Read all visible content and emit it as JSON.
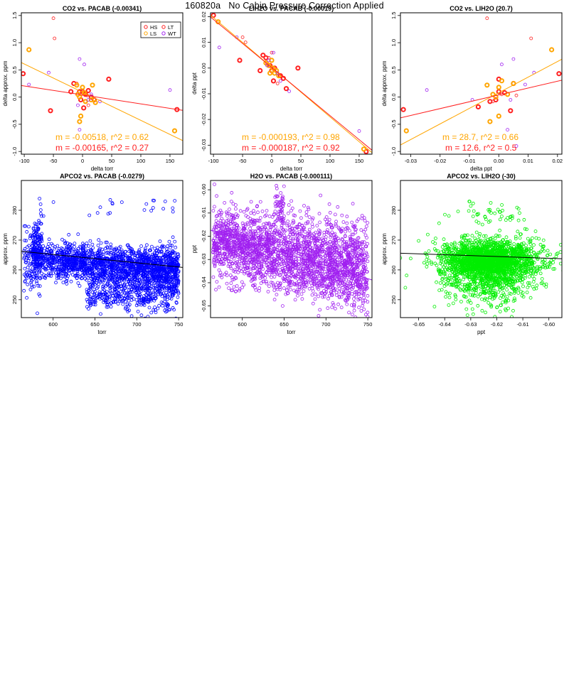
{
  "page": {
    "title": "160820a   No Cabin Pressure Correction Applied"
  },
  "chart_data": [
    {
      "type": "scatter",
      "title": "CO2 vs. PACAB (-0.00341)",
      "xlabel": "delta torr",
      "ylabel": "delta approx. ppm",
      "xlim": [
        -105,
        172
      ],
      "ylim": [
        -1.05,
        1.55
      ],
      "xticks": [
        -100,
        -50,
        0,
        50,
        100,
        150
      ],
      "yticks": [
        -1.0,
        -0.5,
        0.0,
        0.5,
        1.0,
        1.5
      ],
      "ytick_labels": [
        "-1.0",
        "-0.5",
        "0.0",
        "0.5",
        "1.0",
        "1.5"
      ],
      "legend": {
        "placement": "top-right",
        "entries": [
          {
            "label": "HS",
            "color": "#ff2020"
          },
          {
            "label": "LT",
            "color": "#ff2020"
          },
          {
            "label": "LS",
            "color": "#ffa500"
          },
          {
            "label": "WT",
            "color": "#a020f0"
          }
        ]
      },
      "fits": [
        {
          "color": "#ffa500",
          "slope": -0.00518,
          "intercept": 0.09
        },
        {
          "color": "#ff2020",
          "slope": -0.00165,
          "intercept": 0.04
        }
      ],
      "annotations": [
        {
          "text": "m = -0.00518, r^2 = 0.62",
          "color": "#ffa500"
        },
        {
          "text": "m = -0.00165, r^2 = 0.27",
          "color": "#ff2020"
        }
      ],
      "series": [
        {
          "name": "HS",
          "color": "#ff2020",
          "thick": true,
          "points": [
            [
              -102,
              0.43
            ],
            [
              -55,
              -0.25
            ],
            [
              -15,
              0.25
            ],
            [
              -5,
              0.1
            ],
            [
              -3,
              -0.05
            ],
            [
              0,
              0.1
            ],
            [
              2,
              -0.2
            ],
            [
              10,
              0.12
            ],
            [
              15,
              0.0
            ],
            [
              20,
              -0.05
            ],
            [
              45,
              0.33
            ],
            [
              162,
              -0.23
            ],
            [
              -20,
              0.1
            ],
            [
              5,
              0.05
            ]
          ]
        },
        {
          "name": "LT",
          "color": "#ff2020",
          "thick": false,
          "points": [
            [
              -50,
              1.45
            ],
            [
              -48,
              1.08
            ],
            [
              -10,
              0.25
            ],
            [
              5,
              -0.08
            ],
            [
              10,
              -0.15
            ],
            [
              -2,
              0.05
            ],
            [
              8,
              0.03
            ]
          ]
        },
        {
          "name": "LS",
          "color": "#ffa500",
          "thick": true,
          "points": [
            [
              -92,
              0.87
            ],
            [
              -10,
              0.22
            ],
            [
              -5,
              0.0
            ],
            [
              -3,
              -0.35
            ],
            [
              -5,
              -0.45
            ],
            [
              0,
              0.18
            ],
            [
              5,
              -0.08
            ],
            [
              17,
              0.22
            ],
            [
              15,
              -0.05
            ],
            [
              22,
              -0.1
            ],
            [
              158,
              -0.62
            ],
            [
              -8,
              0.05
            ],
            [
              3,
              0.08
            ]
          ]
        },
        {
          "name": "WT",
          "color": "#a020f0",
          "thick": false,
          "points": [
            [
              -92,
              0.23
            ],
            [
              -58,
              0.45
            ],
            [
              -5,
              0.7
            ],
            [
              3,
              0.6
            ],
            [
              10,
              -0.05
            ],
            [
              -5,
              -0.6
            ],
            [
              15,
              0.05
            ],
            [
              150,
              0.13
            ],
            [
              -8,
              -0.15
            ],
            [
              30,
              -0.08
            ]
          ]
        }
      ]
    },
    {
      "type": "scatter",
      "title": "LIH2O vs. PACAB (-0.00019)",
      "xlabel": "delta torr",
      "ylabel": "delta ppt",
      "xlim": [
        -105,
        172
      ],
      "ylim": [
        -0.0335,
        0.0215
      ],
      "xticks": [
        -100,
        -50,
        0,
        50,
        100,
        150
      ],
      "yticks": [
        -0.03,
        -0.02,
        -0.01,
        0.0,
        0.01,
        0.02
      ],
      "ytick_labels": [
        "-0.03",
        "-0.02",
        "-0.01",
        "0.00",
        "0.01",
        "0.02"
      ],
      "fits": [
        {
          "color": "#ffa500",
          "slope": -0.000193,
          "intercept": 0.0003
        },
        {
          "color": "#ff2020",
          "slope": -0.000187,
          "intercept": 0.0002
        }
      ],
      "annotations": [
        {
          "text": "m = -0.000193, r^2 = 0.98",
          "color": "#ffa500"
        },
        {
          "text": "m = -0.000187, r^2 = 0.92",
          "color": "#ff2020"
        }
      ],
      "series": [
        {
          "name": "HS",
          "color": "#ff2020",
          "thick": true,
          "points": [
            [
              -100,
              0.0205
            ],
            [
              -55,
              0.003
            ],
            [
              -15,
              0.005
            ],
            [
              -10,
              0.004
            ],
            [
              -3,
              0.001
            ],
            [
              0,
              -0.001
            ],
            [
              5,
              0.0
            ],
            [
              15,
              -0.003
            ],
            [
              20,
              -0.004
            ],
            [
              25,
              -0.008
            ],
            [
              45,
              0.0
            ],
            [
              162,
              -0.0325
            ],
            [
              -20,
              -0.001
            ],
            [
              3,
              -0.005
            ]
          ]
        },
        {
          "name": "LT",
          "color": "#ff2020",
          "thick": false,
          "points": [
            [
              -50,
              0.012
            ],
            [
              -45,
              0.01
            ],
            [
              -5,
              0.004
            ],
            [
              0,
              0.006
            ],
            [
              10,
              -0.006
            ],
            [
              -8,
              0.002
            ]
          ]
        },
        {
          "name": "LS",
          "color": "#ffa500",
          "thick": true,
          "points": [
            [
              -92,
              0.018
            ],
            [
              -10,
              0.002
            ],
            [
              -5,
              0.001
            ],
            [
              0,
              0.003
            ],
            [
              2,
              0.0
            ],
            [
              5,
              -0.002
            ],
            [
              12,
              -0.003
            ],
            [
              158,
              -0.0315
            ],
            [
              -3,
              -0.002
            ],
            [
              8,
              -0.001
            ]
          ]
        },
        {
          "name": "WT",
          "color": "#a020f0",
          "thick": false,
          "points": [
            [
              -90,
              0.008
            ],
            [
              -60,
              0.012
            ],
            [
              -5,
              0.003
            ],
            [
              3,
              0.006
            ],
            [
              10,
              -0.002
            ],
            [
              30,
              -0.009
            ],
            [
              150,
              -0.0245
            ],
            [
              -8,
              0.001
            ],
            [
              15,
              -0.005
            ]
          ]
        }
      ]
    },
    {
      "type": "scatter",
      "title": "CO2 vs. LIH2O (20.7)",
      "xlabel": "delta ppt",
      "ylabel": "delta approx. ppm",
      "xlim": [
        -0.0335,
        0.0215
      ],
      "ylim": [
        -1.05,
        1.55
      ],
      "xticks": [
        -0.03,
        -0.02,
        -0.01,
        0.0,
        0.01,
        0.02
      ],
      "xtick_labels": [
        "-0.03",
        "-0.02",
        "-0.01",
        "0.00",
        "0.01",
        "0.02"
      ],
      "yticks": [
        -1.0,
        -0.5,
        0.0,
        0.5,
        1.0,
        1.5
      ],
      "ytick_labels": [
        "-1.0",
        "-0.5",
        "0.0",
        "0.5",
        "1.0",
        "1.5"
      ],
      "fits": [
        {
          "color": "#ffa500",
          "slope": 28.7,
          "intercept": 0.08
        },
        {
          "color": "#ff2020",
          "slope": 12.6,
          "intercept": 0.04
        }
      ],
      "annotations": [
        {
          "text": "m = 28.7, r^2 = 0.66",
          "color": "#ffa500"
        },
        {
          "text": "m = 12.6, r^2 = 0.5",
          "color": "#ff2020"
        }
      ],
      "series": [
        {
          "name": "HS",
          "color": "#ff2020",
          "thick": true,
          "points": [
            [
              -0.0325,
              -0.23
            ],
            [
              -0.007,
              -0.18
            ],
            [
              -0.003,
              -0.08
            ],
            [
              0.0,
              0.1
            ],
            [
              0.002,
              0.08
            ],
            [
              0.0,
              0.33
            ],
            [
              0.004,
              -0.25
            ],
            [
              0.005,
              0.25
            ],
            [
              0.0205,
              0.43
            ],
            [
              -0.001,
              -0.05
            ]
          ]
        },
        {
          "name": "LT",
          "color": "#ff2020",
          "thick": false,
          "points": [
            [
              -0.004,
              1.45
            ],
            [
              0.011,
              1.08
            ],
            [
              -0.002,
              -0.08
            ],
            [
              0.001,
              0.05
            ],
            [
              0.006,
              0.03
            ]
          ]
        },
        {
          "name": "LS",
          "color": "#ffa500",
          "thick": true,
          "points": [
            [
              -0.0315,
              -0.62
            ],
            [
              -0.004,
              0.22
            ],
            [
              -0.002,
              0.05
            ],
            [
              -0.003,
              -0.45
            ],
            [
              0.0,
              0.18
            ],
            [
              0.001,
              0.3
            ],
            [
              0.0,
              -0.35
            ],
            [
              0.003,
              0.05
            ],
            [
              0.005,
              0.25
            ],
            [
              0.018,
              0.87
            ],
            [
              -0.001,
              0.0
            ]
          ]
        },
        {
          "name": "WT",
          "color": "#a020f0",
          "thick": false,
          "points": [
            [
              -0.0245,
              0.13
            ],
            [
              -0.009,
              -0.05
            ],
            [
              0.001,
              0.6
            ],
            [
              0.003,
              -0.6
            ],
            [
              0.005,
              0.7
            ],
            [
              0.006,
              -0.9
            ],
            [
              0.009,
              0.23
            ],
            [
              0.012,
              0.45
            ],
            [
              0.004,
              -0.05
            ]
          ]
        }
      ]
    },
    {
      "type": "scatter",
      "title": "APCO2 vs. PACAB (-0.0279)",
      "xlabel": "torr",
      "ylabel": "approx. ppm",
      "xlim": [
        562,
        755
      ],
      "ylim": [
        244,
        290
      ],
      "xticks": [
        600,
        650,
        700,
        750
      ],
      "yticks": [
        250,
        260,
        270,
        280
      ],
      "fits": [
        {
          "color": "#000000",
          "slope": -0.0279,
          "intercept": 281.9
        }
      ],
      "point_color": "#0000ff",
      "cloud": {
        "seed": 17,
        "count": 2600,
        "mode": "pacab_co2"
      }
    },
    {
      "type": "scatter",
      "title": "H2O vs. PACAB (-0.000111)",
      "xlabel": "torr",
      "ylabel": "ppt",
      "xlim": [
        562,
        755
      ],
      "ylim": [
        -0.655,
        -0.596
      ],
      "xticks": [
        600,
        650,
        700,
        750
      ],
      "yticks": [
        -0.65,
        -0.64,
        -0.63,
        -0.62,
        -0.61,
        -0.6
      ],
      "ytick_labels": [
        "-0.65",
        "-0.64",
        "-0.63",
        "-0.62",
        "-0.61",
        "-0.60"
      ],
      "fits": [
        {
          "color": "#a020f0",
          "slope": -0.000111,
          "intercept": -0.555
        }
      ],
      "point_color": "#a020f0",
      "cloud": {
        "seed": 29,
        "count": 2600,
        "mode": "pacab_h2o"
      }
    },
    {
      "type": "scatter",
      "title": "APCO2 vs. LIH2O (-30)",
      "xlabel": "ppt",
      "ylabel": "approx. ppm",
      "xlim": [
        -0.657,
        -0.595
      ],
      "ylim": [
        244,
        290
      ],
      "xticks": [
        -0.65,
        -0.64,
        -0.63,
        -0.62,
        -0.61,
        -0.6
      ],
      "xtick_labels": [
        "-0.65",
        "-0.64",
        "-0.63",
        "-0.62",
        "-0.61",
        "-0.60"
      ],
      "yticks": [
        250,
        260,
        270,
        280
      ],
      "fits": [
        {
          "color": "#000000",
          "slope": -30,
          "intercept": 245.9
        }
      ],
      "point_color": "#00ee00",
      "cloud": {
        "seed": 41,
        "count": 2600,
        "mode": "h2o_co2"
      }
    }
  ]
}
